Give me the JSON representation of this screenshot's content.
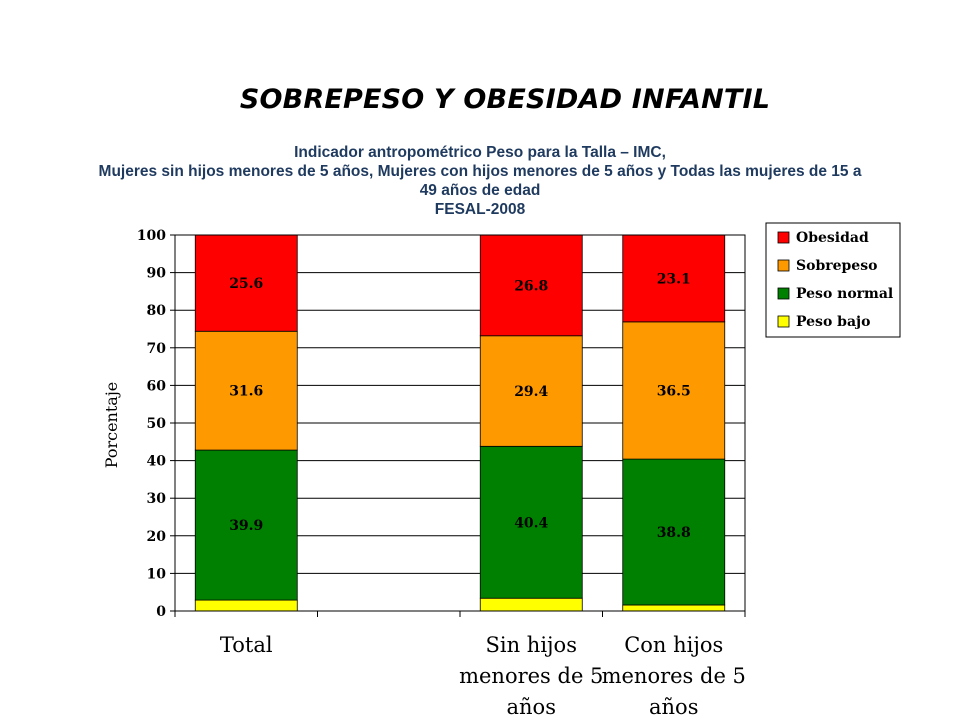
{
  "slide": {
    "title": "SOBREPESO Y OBESIDAD INFANTIL",
    "subtitle_lines": [
      "Indicador antropométrico Peso para la Talla – IMC,",
      "Mujeres sin hijos menores de 5 años, Mujeres con hijos menores de 5 años y Todas las mujeres de 15 a",
      "49 años de edad",
      "FESAL-2008"
    ]
  },
  "chart_data": {
    "type": "bar",
    "stacked": true,
    "title": "",
    "xlabel": "",
    "ylabel": "Porcentaje",
    "ylim": [
      0,
      100
    ],
    "yticks": [
      0,
      10,
      20,
      30,
      40,
      50,
      60,
      70,
      80,
      90,
      100
    ],
    "grid": true,
    "legend_position": "top-right",
    "categories": [
      [
        "Total"
      ],
      [
        ""
      ],
      [
        "Sin hijos",
        "menores de 5",
        "años"
      ],
      [
        "Con hijos",
        "menores de 5",
        "años"
      ]
    ],
    "series": [
      {
        "name": "Peso bajo",
        "color": "#ffff00",
        "values": [
          2.9,
          null,
          3.4,
          1.6
        ],
        "labeled": false
      },
      {
        "name": "Peso normal",
        "color": "#008000",
        "values": [
          39.9,
          null,
          40.4,
          38.8
        ],
        "labeled": true
      },
      {
        "name": "Sobrepeso",
        "color": "#ff9900",
        "values": [
          31.6,
          null,
          29.4,
          36.5
        ],
        "labeled": true
      },
      {
        "name": "Obesidad",
        "color": "#ff0000",
        "values": [
          25.6,
          null,
          26.8,
          23.1
        ],
        "labeled": true
      }
    ]
  }
}
